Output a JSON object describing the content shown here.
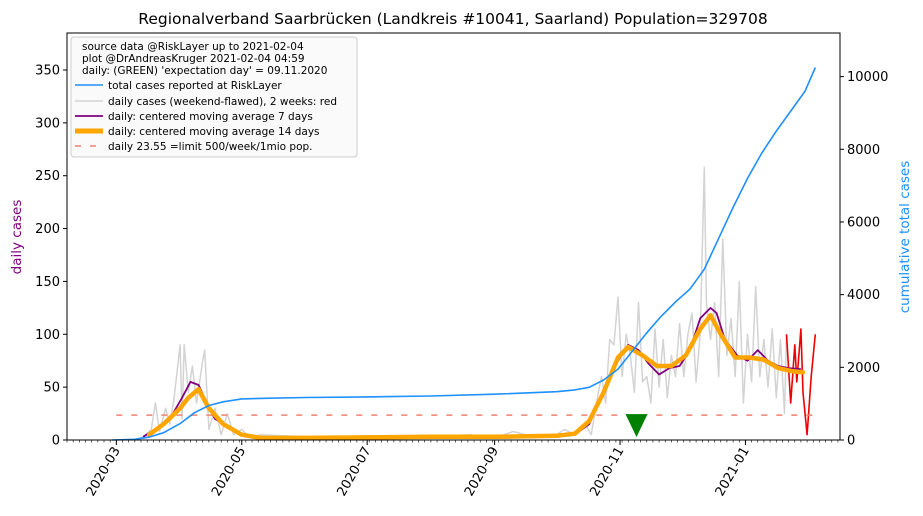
{
  "chart_data": {
    "type": "line",
    "title": "Regionalverband Saarbrücken (Landkreis #10041, Saarland) Population=329708",
    "ylabel_left": "daily cases",
    "ylabel_right": "cumulative total cases",
    "x_range": [
      "2020-02-06",
      "2021-02-16"
    ],
    "ylim_left": [
      0,
      385
    ],
    "ylim_right": [
      0,
      11200
    ],
    "yticks_left": [
      0,
      50,
      100,
      150,
      200,
      250,
      300,
      350
    ],
    "yticks_right": [
      0,
      2000,
      4000,
      6000,
      8000,
      10000
    ],
    "xticks": [
      "2020-03",
      "2020-05",
      "2020-07",
      "2020-09",
      "2020-11",
      "2021-01"
    ],
    "grid": false,
    "legend_position": "top-left",
    "legend_info": [
      "source data @RiskLayer up to 2021-02-04",
      "plot @DrAndreasKruger 2021-02-04 04:59",
      "daily: (GREEN) 'expectation day' = 09.11.2020"
    ],
    "limit_value": 23.55,
    "expectation_day": "2020-11-09",
    "series": [
      {
        "name": "total cases reported at RiskLayer",
        "axis": "right",
        "color": "#1e90ff",
        "points": [
          [
            "2020-02-28",
            0
          ],
          [
            "2020-03-10",
            20
          ],
          [
            "2020-03-17",
            80
          ],
          [
            "2020-03-24",
            200
          ],
          [
            "2020-04-01",
            450
          ],
          [
            "2020-04-08",
            750
          ],
          [
            "2020-04-15",
            950
          ],
          [
            "2020-04-22",
            1050
          ],
          [
            "2020-05-01",
            1130
          ],
          [
            "2020-05-15",
            1150
          ],
          [
            "2020-06-01",
            1170
          ],
          [
            "2020-07-01",
            1185
          ],
          [
            "2020-08-01",
            1210
          ],
          [
            "2020-09-01",
            1260
          ],
          [
            "2020-10-01",
            1330
          ],
          [
            "2020-10-10",
            1380
          ],
          [
            "2020-10-17",
            1450
          ],
          [
            "2020-10-24",
            1650
          ],
          [
            "2020-10-31",
            1950
          ],
          [
            "2020-11-07",
            2450
          ],
          [
            "2020-11-14",
            2950
          ],
          [
            "2020-11-21",
            3400
          ],
          [
            "2020-11-28",
            3800
          ],
          [
            "2020-12-05",
            4150
          ],
          [
            "2020-12-12",
            4700
          ],
          [
            "2020-12-19",
            5550
          ],
          [
            "2020-12-26",
            6400
          ],
          [
            "2021-01-02",
            7200
          ],
          [
            "2021-01-09",
            7900
          ],
          [
            "2021-01-16",
            8500
          ],
          [
            "2021-01-23",
            9050
          ],
          [
            "2021-01-30",
            9600
          ],
          [
            "2021-02-04",
            10250
          ]
        ]
      },
      {
        "name": "daily cases (weekend-flawed), 2 weeks: red",
        "axis": "left",
        "color": "#d3d3d3",
        "recent_color": "#ee0000",
        "points": [
          [
            "2020-03-10",
            0
          ],
          [
            "2020-03-14",
            3
          ],
          [
            "2020-03-18",
            10
          ],
          [
            "2020-03-20",
            35
          ],
          [
            "2020-03-22",
            8
          ],
          [
            "2020-03-25",
            30
          ],
          [
            "2020-03-27",
            15
          ],
          [
            "2020-03-29",
            38
          ],
          [
            "2020-04-01",
            90
          ],
          [
            "2020-04-02",
            20
          ],
          [
            "2020-04-03",
            90
          ],
          [
            "2020-04-05",
            45
          ],
          [
            "2020-04-07",
            70
          ],
          [
            "2020-04-09",
            35
          ],
          [
            "2020-04-12",
            75
          ],
          [
            "2020-04-13",
            85
          ],
          [
            "2020-04-15",
            10
          ],
          [
            "2020-04-18",
            30
          ],
          [
            "2020-04-21",
            5
          ],
          [
            "2020-04-24",
            25
          ],
          [
            "2020-04-27",
            5
          ],
          [
            "2020-05-01",
            10
          ],
          [
            "2020-05-05",
            2
          ],
          [
            "2020-05-10",
            5
          ],
          [
            "2020-06-01",
            3
          ],
          [
            "2020-07-01",
            2
          ],
          [
            "2020-08-01",
            3
          ],
          [
            "2020-08-20",
            5
          ],
          [
            "2020-09-01",
            2
          ],
          [
            "2020-09-10",
            8
          ],
          [
            "2020-09-20",
            3
          ],
          [
            "2020-10-01",
            5
          ],
          [
            "2020-10-05",
            10
          ],
          [
            "2020-10-10",
            5
          ],
          [
            "2020-10-15",
            15
          ],
          [
            "2020-10-18",
            5
          ],
          [
            "2020-10-21",
            40
          ],
          [
            "2020-10-23",
            60
          ],
          [
            "2020-10-25",
            35
          ],
          [
            "2020-10-27",
            95
          ],
          [
            "2020-10-29",
            90
          ],
          [
            "2020-10-31",
            135
          ],
          [
            "2020-11-02",
            60
          ],
          [
            "2020-11-04",
            100
          ],
          [
            "2020-11-06",
            80
          ],
          [
            "2020-11-08",
            45
          ],
          [
            "2020-11-10",
            130
          ],
          [
            "2020-11-12",
            55
          ],
          [
            "2020-11-14",
            60
          ],
          [
            "2020-11-16",
            35
          ],
          [
            "2020-11-18",
            105
          ],
          [
            "2020-11-20",
            50
          ],
          [
            "2020-11-22",
            95
          ],
          [
            "2020-11-24",
            40
          ],
          [
            "2020-11-26",
            80
          ],
          [
            "2020-11-28",
            60
          ],
          [
            "2020-11-30",
            110
          ],
          [
            "2020-12-02",
            60
          ],
          [
            "2020-12-04",
            100
          ],
          [
            "2020-12-06",
            120
          ],
          [
            "2020-12-08",
            55
          ],
          [
            "2020-12-10",
            100
          ],
          [
            "2020-12-12",
            258
          ],
          [
            "2020-12-13",
            130
          ],
          [
            "2020-12-15",
            95
          ],
          [
            "2020-12-17",
            130
          ],
          [
            "2020-12-19",
            60
          ],
          [
            "2020-12-21",
            190
          ],
          [
            "2020-12-23",
            80
          ],
          [
            "2020-12-25",
            115
          ],
          [
            "2020-12-27",
            60
          ],
          [
            "2020-12-29",
            150
          ],
          [
            "2020-12-31",
            35
          ],
          [
            "2021-01-02",
            100
          ],
          [
            "2021-01-04",
            55
          ],
          [
            "2021-01-06",
            145
          ],
          [
            "2021-01-08",
            60
          ],
          [
            "2021-01-10",
            95
          ],
          [
            "2021-01-12",
            50
          ],
          [
            "2021-01-14",
            105
          ],
          [
            "2021-01-16",
            40
          ],
          [
            "2021-01-18",
            95
          ],
          [
            "2021-01-20",
            25
          ],
          [
            "2021-01-21",
            100
          ]
        ],
        "recent_points": [
          [
            "2021-01-21",
            100
          ],
          [
            "2021-01-23",
            35
          ],
          [
            "2021-01-25",
            90
          ],
          [
            "2021-01-26",
            55
          ],
          [
            "2021-01-28",
            105
          ],
          [
            "2021-01-29",
            45
          ],
          [
            "2021-01-31",
            5
          ],
          [
            "2021-02-02",
            60
          ],
          [
            "2021-02-04",
            100
          ]
        ]
      },
      {
        "name": "daily: centered moving average 7 days",
        "axis": "left",
        "color": "#800080",
        "points": [
          [
            "2020-03-14",
            3
          ],
          [
            "2020-03-20",
            10
          ],
          [
            "2020-03-27",
            20
          ],
          [
            "2020-04-02",
            40
          ],
          [
            "2020-04-06",
            55
          ],
          [
            "2020-04-10",
            52
          ],
          [
            "2020-04-14",
            35
          ],
          [
            "2020-04-18",
            20
          ],
          [
            "2020-04-25",
            12
          ],
          [
            "2020-05-02",
            5
          ],
          [
            "2020-05-10",
            3
          ],
          [
            "2020-06-01",
            2
          ],
          [
            "2020-08-01",
            3
          ],
          [
            "2020-09-01",
            3
          ],
          [
            "2020-10-01",
            4
          ],
          [
            "2020-10-10",
            5
          ],
          [
            "2020-10-17",
            15
          ],
          [
            "2020-10-24",
            45
          ],
          [
            "2020-10-31",
            75
          ],
          [
            "2020-11-05",
            90
          ],
          [
            "2020-11-10",
            85
          ],
          [
            "2020-11-15",
            72
          ],
          [
            "2020-11-20",
            62
          ],
          [
            "2020-11-25",
            68
          ],
          [
            "2020-11-30",
            70
          ],
          [
            "2020-12-05",
            85
          ],
          [
            "2020-12-10",
            115
          ],
          [
            "2020-12-15",
            125
          ],
          [
            "2020-12-18",
            120
          ],
          [
            "2020-12-22",
            95
          ],
          [
            "2020-12-28",
            80
          ],
          [
            "2021-01-02",
            75
          ],
          [
            "2021-01-07",
            85
          ],
          [
            "2021-01-12",
            75
          ],
          [
            "2021-01-17",
            70
          ],
          [
            "2021-01-22",
            68
          ],
          [
            "2021-01-28",
            67
          ]
        ]
      },
      {
        "name": "daily: centered moving average 14 days",
        "axis": "left",
        "color": "#ffa500",
        "points": [
          [
            "2020-03-17",
            5
          ],
          [
            "2020-03-24",
            15
          ],
          [
            "2020-04-01",
            30
          ],
          [
            "2020-04-05",
            40
          ],
          [
            "2020-04-10",
            48
          ],
          [
            "2020-04-15",
            30
          ],
          [
            "2020-04-22",
            15
          ],
          [
            "2020-05-01",
            5
          ],
          [
            "2020-05-10",
            2
          ],
          [
            "2020-06-01",
            2
          ],
          [
            "2020-08-01",
            3
          ],
          [
            "2020-09-01",
            3
          ],
          [
            "2020-10-01",
            4
          ],
          [
            "2020-10-10",
            6
          ],
          [
            "2020-10-17",
            18
          ],
          [
            "2020-10-24",
            45
          ],
          [
            "2020-10-31",
            78
          ],
          [
            "2020-11-05",
            88
          ],
          [
            "2020-11-12",
            80
          ],
          [
            "2020-11-19",
            70
          ],
          [
            "2020-11-26",
            70
          ],
          [
            "2020-12-03",
            80
          ],
          [
            "2020-12-10",
            105
          ],
          [
            "2020-12-15",
            118
          ],
          [
            "2020-12-20",
            100
          ],
          [
            "2020-12-27",
            78
          ],
          [
            "2021-01-03",
            78
          ],
          [
            "2021-01-10",
            76
          ],
          [
            "2021-01-17",
            68
          ],
          [
            "2021-01-24",
            65
          ],
          [
            "2021-01-29",
            64
          ]
        ]
      },
      {
        "name": "daily 23.55 =limit 500/week/1mio pop.",
        "axis": "left",
        "color": "#f08070",
        "style": "dashed",
        "points": [
          [
            "2020-03-01",
            23.55
          ],
          [
            "2021-02-04",
            23.55
          ]
        ]
      }
    ]
  }
}
